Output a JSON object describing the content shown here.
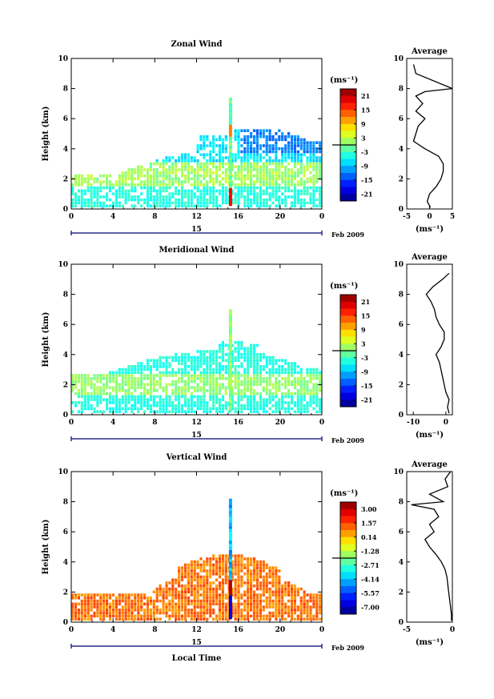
{
  "chart_data": [
    {
      "type": "heatmap",
      "title": "Zonal Wind",
      "xlabel": "",
      "ylabel": "Height (km)",
      "xlim": [
        0,
        24
      ],
      "ylim": [
        0,
        10
      ],
      "x_ticks": [
        "0",
        "4",
        "8",
        "12",
        "16",
        "20",
        "0"
      ],
      "y_ticks": [
        "0",
        "2",
        "4",
        "6",
        "8",
        "10"
      ],
      "date_label": "15",
      "month_label": "Feb 2009",
      "colorbar": {
        "unit": "(ms⁻¹)",
        "ticks": [
          "21",
          "15",
          "9",
          "3",
          "-3",
          "-9",
          "-15",
          "-21"
        ],
        "range": [
          -24,
          24
        ]
      },
      "profile": {
        "title": "Average",
        "xlabel": "(ms⁻¹)",
        "x_ticks": [
          "-5",
          "0",
          "5"
        ],
        "xlim": [
          -5,
          5
        ],
        "y_ticks": [
          "0",
          "2",
          "4",
          "6",
          "8",
          "10"
        ],
        "height": [
          0.1,
          0.5,
          1.0,
          1.5,
          2.0,
          2.5,
          3.0,
          3.5,
          4.0,
          4.5,
          5.0,
          5.5,
          6.0,
          6.5,
          7.0,
          7.5,
          7.8,
          8.0,
          9.0,
          9.6
        ],
        "value": [
          0.2,
          -0.5,
          0.0,
          1.5,
          2.5,
          3.0,
          3.0,
          2.0,
          -1.0,
          -3.5,
          -3.0,
          -2.5,
          -1.0,
          -3.0,
          -1.5,
          -3.0,
          -1.0,
          5.0,
          -3.0,
          -3.5
        ]
      }
    },
    {
      "type": "heatmap",
      "title": "Meridional Wind",
      "xlabel": "",
      "ylabel": "Height (km)",
      "xlim": [
        0,
        24
      ],
      "ylim": [
        0,
        10
      ],
      "x_ticks": [
        "0",
        "4",
        "8",
        "12",
        "16",
        "20",
        "0"
      ],
      "y_ticks": [
        "0",
        "2",
        "4",
        "6",
        "8",
        "10"
      ],
      "date_label": "15",
      "month_label": "Feb 2009",
      "colorbar": {
        "unit": "(ms⁻¹)",
        "ticks": [
          "21",
          "15",
          "9",
          "3",
          "-3",
          "-9",
          "-15",
          "-21"
        ],
        "range": [
          -24,
          24
        ]
      },
      "profile": {
        "title": "Average",
        "xlabel": "(ms⁻¹)",
        "x_ticks": [
          "-10",
          "0"
        ],
        "xlim": [
          -12,
          2
        ],
        "y_ticks": [
          "0",
          "2",
          "4",
          "6",
          "8",
          "10"
        ],
        "height": [
          0.1,
          0.5,
          1.0,
          1.5,
          2.0,
          2.5,
          3.0,
          3.5,
          4.0,
          4.5,
          5.0,
          5.5,
          6.0,
          6.5,
          7.0,
          7.5,
          8.0,
          8.5,
          9.0,
          9.4
        ],
        "value": [
          1.0,
          0.5,
          1.0,
          0.0,
          -0.5,
          -1.0,
          -1.5,
          -2.0,
          -3.0,
          -1.5,
          -0.5,
          -0.5,
          -2.0,
          -3.0,
          -3.5,
          -4.5,
          -6.0,
          -4.0,
          -1.0,
          1.0
        ]
      }
    },
    {
      "type": "heatmap",
      "title": "Vertical Wind",
      "xlabel": "Local Time",
      "ylabel": "Height (km)",
      "xlim": [
        0,
        24
      ],
      "ylim": [
        0,
        10
      ],
      "x_ticks": [
        "0",
        "4",
        "8",
        "12",
        "16",
        "20",
        "0"
      ],
      "y_ticks": [
        "0",
        "2",
        "4",
        "6",
        "8",
        "10"
      ],
      "date_label": "15",
      "month_label": "Feb 2009",
      "colorbar": {
        "unit": "(ms⁻¹)",
        "ticks": [
          "3.00",
          "1.57",
          "0.14",
          "-1.28",
          "-2.71",
          "-4.14",
          "-5.57",
          "-7.00"
        ],
        "range": [
          -7.7,
          3.7
        ]
      },
      "profile": {
        "title": "Average",
        "xlabel": "(ms⁻¹)",
        "x_ticks": [
          "-5",
          "0"
        ],
        "xlim": [
          -5,
          0
        ],
        "y_ticks": [
          "0",
          "2",
          "4",
          "6",
          "8",
          "10"
        ],
        "height": [
          0.1,
          0.5,
          1.0,
          1.5,
          2.0,
          2.5,
          3.0,
          3.5,
          4.0,
          4.5,
          5.0,
          5.5,
          6.0,
          6.5,
          7.0,
          7.5,
          7.8,
          8.0,
          8.5,
          9.0,
          9.5,
          10.0
        ],
        "value": [
          -0.1,
          -0.1,
          -0.2,
          -0.3,
          -0.4,
          -0.5,
          -0.6,
          -0.8,
          -1.2,
          -1.8,
          -2.5,
          -3.0,
          -2.0,
          -2.5,
          -1.5,
          -2.0,
          -4.5,
          -1.0,
          -2.5,
          -0.5,
          -0.8,
          -0.2
        ]
      }
    }
  ]
}
